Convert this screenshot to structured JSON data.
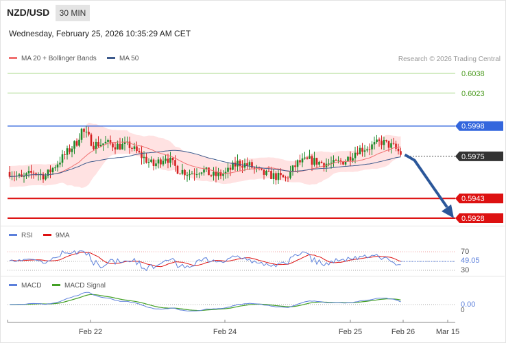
{
  "header": {
    "pair": "NZD/USD",
    "timeframe": "30 MIN",
    "datetime": "Wednesday, February 25, 2026 10:35:29 AM CET"
  },
  "legend": {
    "ma20": "MA 20 + Bollinger Bands",
    "ma50": "MA 50",
    "rsi": "RSI",
    "rsi_ma": "9MA",
    "macd": "MACD",
    "macd_signal": "MACD Signal"
  },
  "credit": "Research © 2026 Trading Central",
  "colors": {
    "bullish": "#1a8a2a",
    "bearish": "#d42020",
    "ma20": "#f07070",
    "ma50": "#3d5a8c",
    "bollinger_fill": "#ffe2e2",
    "resistance_green": "#a8d88a",
    "pivot": "#3366dd",
    "support": "#dd1111",
    "arrow": "#2b579a",
    "rsi": "#5b7fdb",
    "macd": "#5b7fdb",
    "macd_signal": "#43a025"
  },
  "chart_data": {
    "type": "candlestick",
    "x_ticks": [
      "Feb 22",
      "Feb 24",
      "Feb 25",
      "Feb 26",
      "Mar 15"
    ],
    "price_levels": [
      {
        "value": "0.6038",
        "style": "resistance"
      },
      {
        "value": "0.6023",
        "style": "resistance"
      },
      {
        "value": "0.5998",
        "style": "pivot"
      },
      {
        "value": "0.5975",
        "style": "current"
      },
      {
        "value": "0.5943",
        "style": "support"
      },
      {
        "value": "0.5928",
        "style": "support"
      }
    ],
    "price_range": [
      0.5926,
      0.6045
    ],
    "anchors": [
      [
        0,
        0.5963
      ],
      [
        5,
        0.5958
      ],
      [
        10,
        0.5963
      ],
      [
        15,
        0.596
      ],
      [
        20,
        0.597
      ],
      [
        25,
        0.598
      ],
      [
        28,
        0.5986
      ],
      [
        30,
        0.5995
      ],
      [
        32,
        0.5991
      ],
      [
        35,
        0.5984
      ],
      [
        40,
        0.5985
      ],
      [
        45,
        0.5983
      ],
      [
        50,
        0.5983
      ],
      [
        55,
        0.5975
      ],
      [
        60,
        0.5968
      ],
      [
        65,
        0.5975
      ],
      [
        70,
        0.5965
      ],
      [
        75,
        0.5962
      ],
      [
        80,
        0.5965
      ],
      [
        85,
        0.596
      ],
      [
        90,
        0.5962
      ],
      [
        95,
        0.597
      ],
      [
        100,
        0.5968
      ],
      [
        105,
        0.5962
      ],
      [
        110,
        0.596
      ],
      [
        115,
        0.5958
      ],
      [
        120,
        0.597
      ],
      [
        125,
        0.5972
      ],
      [
        130,
        0.597
      ],
      [
        135,
        0.5969
      ],
      [
        140,
        0.5972
      ],
      [
        145,
        0.598
      ],
      [
        150,
        0.5982
      ],
      [
        155,
        0.5986
      ],
      [
        160,
        0.5982
      ],
      [
        163,
        0.5977
      ]
    ],
    "seed": 7,
    "rsi": {
      "value": "49.05",
      "levels": [
        70,
        30
      ]
    },
    "macd": {
      "value": "0.00",
      "zero_label": "0"
    },
    "forecast": "down to 0.5928"
  }
}
